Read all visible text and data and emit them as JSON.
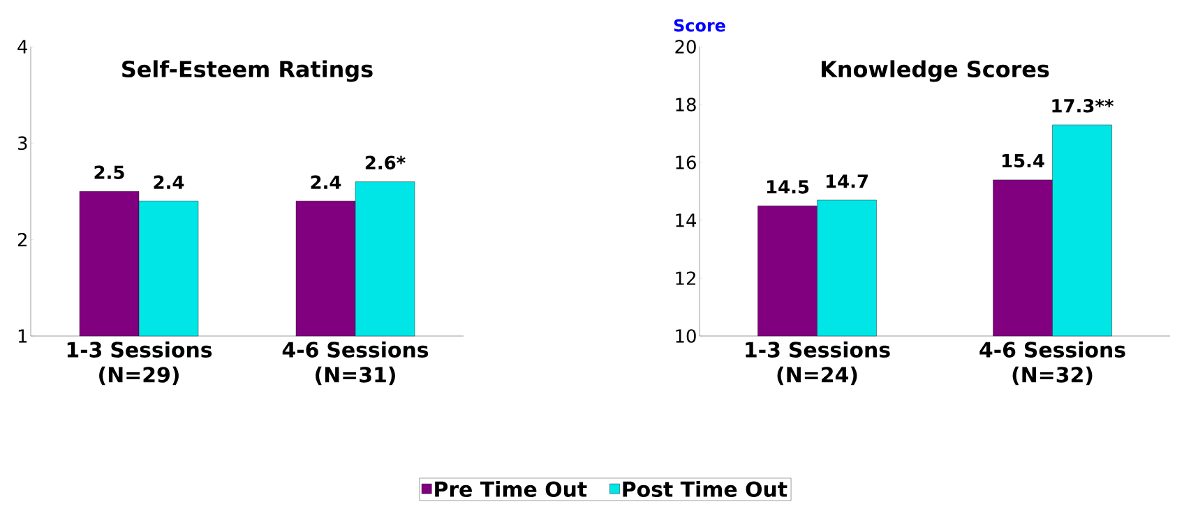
{
  "chart_data": [
    {
      "type": "bar",
      "title": "Self-Esteem Ratings",
      "categories": [
        "1-3 Sessions (N=29)",
        "4-6 Sessions (N=31)"
      ],
      "series": [
        {
          "name": "Pre Time Out",
          "color": "#800080",
          "values": [
            2.5,
            2.4
          ],
          "value_labels": [
            "2.5",
            "2.4"
          ]
        },
        {
          "name": "Post Time Out",
          "color": "#00e6e6",
          "values": [
            2.4,
            2.6
          ],
          "value_labels": [
            "2.4",
            "2.6*"
          ]
        }
      ],
      "ylim": [
        1,
        4
      ],
      "yticks": [
        1,
        2,
        3,
        4
      ],
      "legend": "bottom"
    },
    {
      "type": "bar",
      "title": "Knowledge Scores",
      "ylabel": "Score",
      "categories": [
        "1-3 Sessions (N=24)",
        "4-6 Sessions (N=32)"
      ],
      "series": [
        {
          "color": "#800080",
          "values": [
            14.5,
            15.4
          ],
          "value_labels": [
            "14.5",
            "15.4"
          ]
        },
        {
          "color": "#00e6e6",
          "values": [
            14.7,
            17.3
          ],
          "value_labels": [
            "14.7",
            "17.3**"
          ]
        }
      ],
      "ylim": [
        10,
        20
      ],
      "yticks": [
        10,
        12,
        14,
        16,
        18,
        20
      ]
    }
  ]
}
